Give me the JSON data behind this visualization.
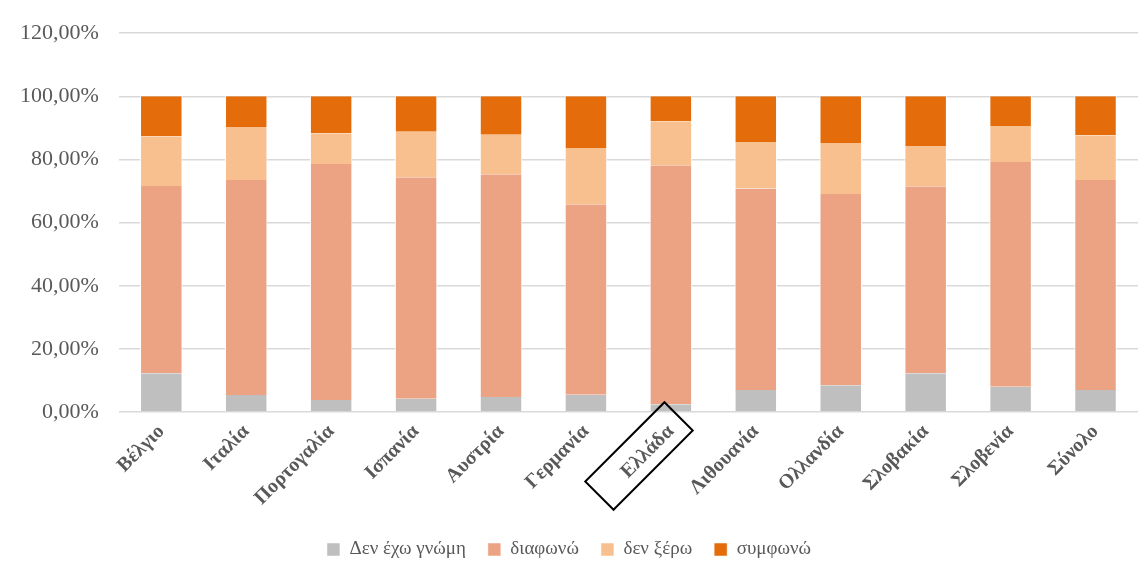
{
  "chart_data": {
    "type": "bar",
    "stacked": true,
    "categories": [
      "Βέλγιο",
      "Ιταλία",
      "Πορτογαλία",
      "Ισπανία",
      "Αυστρία",
      "Γερμανία",
      "Ελλάδα",
      "Λιθουανία",
      "Ολλανδία",
      "Σλοβακία",
      "Σλοβενία",
      "Σύνολο"
    ],
    "series": [
      {
        "name": "Δεν έχω γνώμη",
        "color": "#bfbfbf",
        "values": [
          12.3,
          5.4,
          3.8,
          4.2,
          4.8,
          5.5,
          2.5,
          7.0,
          8.5,
          12.3,
          8.0,
          7.0
        ]
      },
      {
        "name": "διαφωνώ",
        "color": "#eba383",
        "values": [
          59.3,
          68.1,
          74.8,
          70.2,
          70.5,
          60.3,
          75.7,
          63.8,
          60.6,
          59.2,
          71.2,
          66.5
        ]
      },
      {
        "name": "δεν ξέρω",
        "color": "#f9c08f",
        "values": [
          15.8,
          16.8,
          9.7,
          14.4,
          12.5,
          17.8,
          13.9,
          14.7,
          16.1,
          12.8,
          11.4,
          14.2
        ]
      },
      {
        "name": "συμφωνώ",
        "color": "#e46c0a",
        "values": [
          12.6,
          9.7,
          11.7,
          11.2,
          12.2,
          16.4,
          7.9,
          14.5,
          14.8,
          15.7,
          9.4,
          12.3
        ]
      }
    ],
    "ylim": [
      0,
      120
    ],
    "yticks": [
      {
        "value": 0,
        "label": "0,00%"
      },
      {
        "value": 20,
        "label": "20,00%"
      },
      {
        "value": 40,
        "label": "40,00%"
      },
      {
        "value": 60,
        "label": "60,00%"
      },
      {
        "value": 80,
        "label": "80,00%"
      },
      {
        "value": 100,
        "label": "100,00%"
      },
      {
        "value": 120,
        "label": "120,00%"
      }
    ],
    "grid": "y",
    "legend": "bottom"
  }
}
